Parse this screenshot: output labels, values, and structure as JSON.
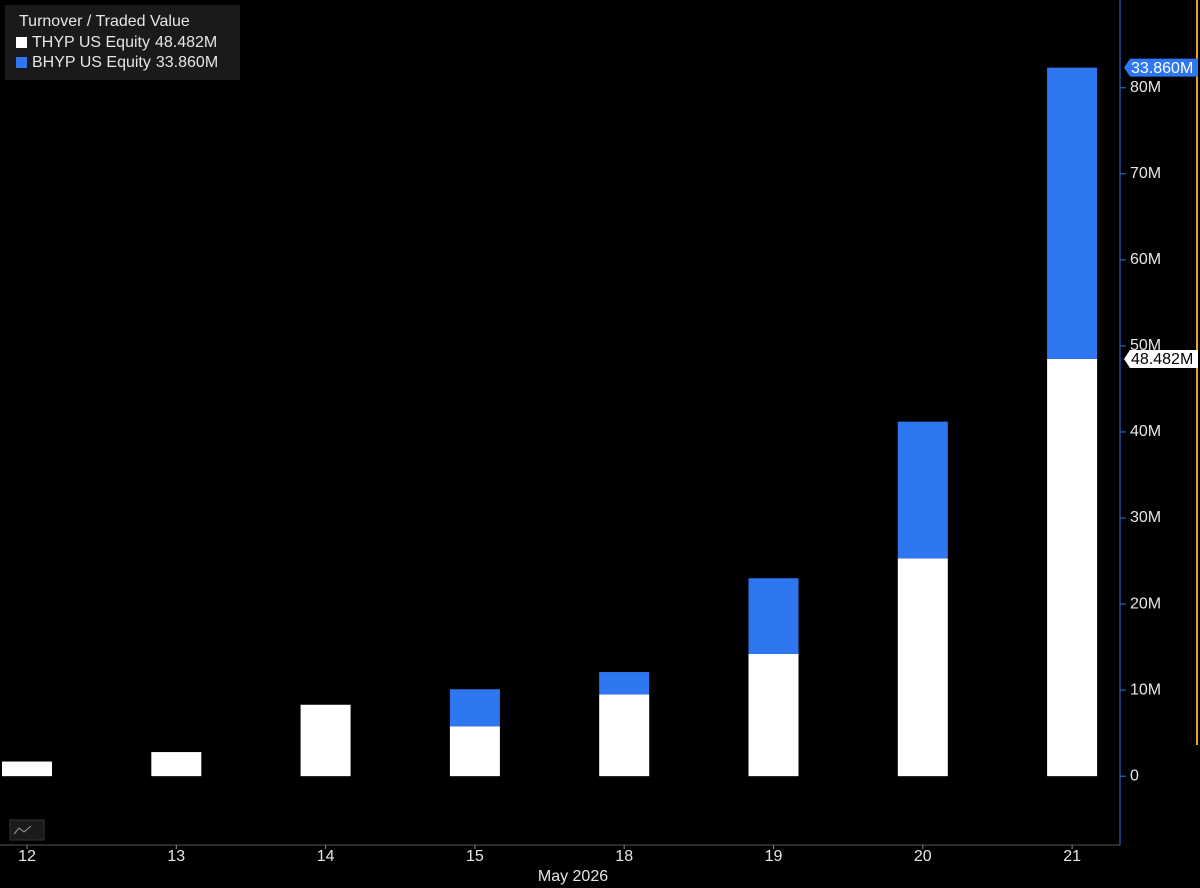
{
  "chart_data": {
    "type": "bar",
    "stacked": true,
    "title": "Turnover / Traded Value",
    "x_label": "May 2026",
    "categories": [
      "12",
      "13",
      "14",
      "15",
      "18",
      "19",
      "20",
      "21"
    ],
    "series": [
      {
        "name": "THYP US Equity",
        "color": "#ffffff",
        "last_value_label": "48.482M",
        "values": [
          1.7,
          2.8,
          8.3,
          5.8,
          9.5,
          14.2,
          25.3,
          48.482
        ]
      },
      {
        "name": "BHYP US Equity",
        "color": "#2e77f0",
        "last_value_label": "33.860M",
        "values": [
          0,
          0,
          0,
          4.3,
          2.6,
          8.8,
          15.9,
          33.86
        ]
      }
    ],
    "ylim": [
      -8,
      90.2
    ],
    "yticks": [
      0,
      {
        "value": 10,
        "label": "10M"
      },
      {
        "value": 20,
        "label": "20M"
      },
      {
        "value": 30,
        "label": "30M"
      },
      {
        "value": 40,
        "label": "40M"
      },
      {
        "value": 50,
        "label": "50M"
      },
      {
        "value": 60,
        "label": "60M"
      },
      {
        "value": 70,
        "label": "70M"
      },
      {
        "value": 80,
        "label": "80M"
      }
    ]
  }
}
